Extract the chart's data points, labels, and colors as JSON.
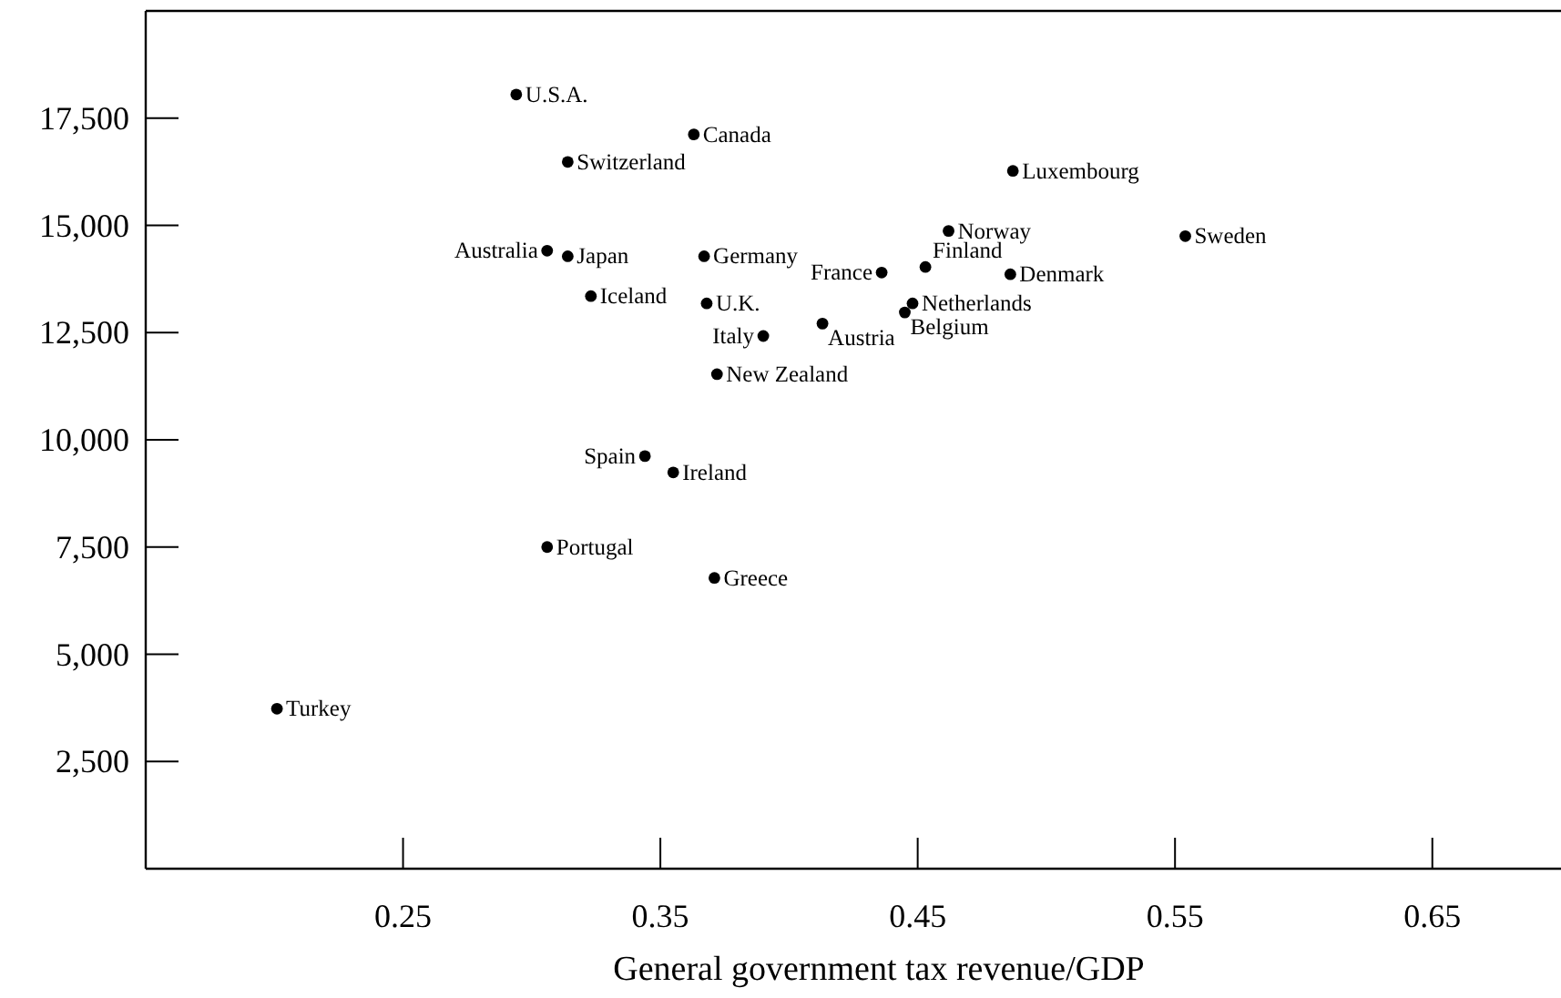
{
  "chart_data": {
    "type": "scatter",
    "xlabel": "General government tax revenue/GDP",
    "color": "#000000",
    "marker": "circle",
    "xlim": [
      0.15,
      0.7
    ],
    "xticks": [
      0.25,
      0.35,
      0.45,
      0.55,
      0.65
    ],
    "ylim": [
      0,
      20000
    ],
    "yticks": [
      {
        "value": 2500,
        "label": "2,500"
      },
      {
        "value": 5000,
        "label": "5,000"
      },
      {
        "value": 7500,
        "label": "7,500"
      },
      {
        "value": 10000,
        "label": "10,000"
      },
      {
        "value": 12500,
        "label": "12,500"
      },
      {
        "value": 15000,
        "label": "15,000"
      },
      {
        "value": 17500,
        "label": "17,500"
      }
    ],
    "x": [
      0.294,
      0.363,
      0.314,
      0.306,
      0.314,
      0.367,
      0.323,
      0.368,
      0.39,
      0.372,
      0.344,
      0.355,
      0.306,
      0.371,
      0.201,
      0.487,
      0.462,
      0.554,
      0.453,
      0.436,
      0.486,
      0.448,
      0.445,
      0.413
    ],
    "values": [
      18050,
      17120,
      16480,
      14410,
      14280,
      14280,
      13350,
      13180,
      12420,
      11530,
      9620,
      9240,
      7500,
      6780,
      3730,
      16270,
      14870,
      14750,
      14030,
      13900,
      13860,
      13180,
      12970,
      12710
    ],
    "annotations": [
      {
        "text": "U.S.A.",
        "x": 0.294,
        "y": 18050
      },
      {
        "text": "Canada",
        "x": 0.363,
        "y": 17120
      },
      {
        "text": "Switzerland",
        "x": 0.314,
        "y": 16480
      },
      {
        "text": "Australia",
        "x": 0.306,
        "y": 14410
      },
      {
        "text": "Japan",
        "x": 0.314,
        "y": 14280
      },
      {
        "text": "Germany",
        "x": 0.367,
        "y": 14280
      },
      {
        "text": "Iceland",
        "x": 0.323,
        "y": 13350
      },
      {
        "text": "U.K.",
        "x": 0.368,
        "y": 13180
      },
      {
        "text": "Italy",
        "x": 0.39,
        "y": 12420
      },
      {
        "text": "New Zealand",
        "x": 0.372,
        "y": 11530
      },
      {
        "text": "Spain",
        "x": 0.344,
        "y": 9620
      },
      {
        "text": "Ireland",
        "x": 0.355,
        "y": 9240
      },
      {
        "text": "Portugal",
        "x": 0.306,
        "y": 7500
      },
      {
        "text": "Greece",
        "x": 0.371,
        "y": 6780
      },
      {
        "text": "Turkey",
        "x": 0.201,
        "y": 3730
      },
      {
        "text": "Luxembourg",
        "x": 0.487,
        "y": 16270
      },
      {
        "text": "Norway",
        "x": 0.462,
        "y": 14870
      },
      {
        "text": "Sweden",
        "x": 0.554,
        "y": 14750
      },
      {
        "text": "Finland",
        "x": 0.453,
        "y": 14030
      },
      {
        "text": "France",
        "x": 0.436,
        "y": 13900
      },
      {
        "text": "Denmark",
        "x": 0.486,
        "y": 13860
      },
      {
        "text": "Netherlands",
        "x": 0.448,
        "y": 13180
      },
      {
        "text": "Belgium",
        "x": 0.445,
        "y": 12970
      },
      {
        "text": "Austria",
        "x": 0.413,
        "y": 12710
      }
    ]
  }
}
